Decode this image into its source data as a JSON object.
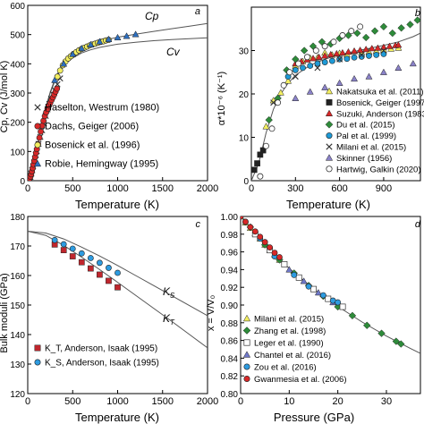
{
  "chart_data": [
    {
      "panel_letter": "a",
      "type": "scatter",
      "xlabel": "Temperature (K)",
      "ylabel": "Cp, Cv (J/mol K)",
      "xlim": [
        0,
        2000
      ],
      "ylim": [
        0,
        600
      ],
      "xticks": [
        0,
        500,
        1000,
        1500,
        2000
      ],
      "yticks": [
        0,
        100,
        200,
        300,
        400,
        500,
        600
      ],
      "curve_labels": [
        "Cp",
        "Cv"
      ],
      "curves": [
        {
          "name": "Cp",
          "x": [
            0,
            25,
            50,
            75,
            100,
            150,
            200,
            250,
            300,
            350,
            400,
            450,
            500,
            600,
            700,
            800,
            900,
            1000,
            1200,
            1400,
            1600,
            1800,
            2000
          ],
          "y": [
            0,
            10,
            36,
            72,
            110,
            184,
            250,
            303,
            345,
            377,
            401,
            420,
            434,
            454,
            467,
            476,
            484,
            491,
            501,
            511,
            520,
            529,
            538
          ]
        },
        {
          "name": "Cv",
          "x": [
            0,
            25,
            50,
            75,
            100,
            150,
            200,
            250,
            300,
            350,
            400,
            450,
            500,
            600,
            700,
            800,
            900,
            1000,
            1200,
            1400,
            1600,
            1800,
            2000
          ],
          "y": [
            0,
            10,
            36,
            72,
            109,
            182,
            247,
            299,
            339,
            370,
            392,
            408,
            420,
            437,
            448,
            456,
            462,
            467,
            474,
            479,
            483,
            486,
            489
          ]
        }
      ],
      "series": [
        {
          "name": "Haselton, Westrum (1980)",
          "marker": "x",
          "color": "#333333",
          "x": [
            10,
            20,
            30,
            40,
            50,
            60,
            70,
            80,
            90,
            100,
            120,
            140,
            160,
            180,
            200,
            220,
            240,
            260,
            280,
            300,
            330,
            360
          ],
          "y": [
            1,
            5,
            13,
            24,
            36,
            49,
            62,
            75,
            88,
            101,
            126,
            150,
            173,
            196,
            222,
            244,
            263,
            280,
            296,
            310,
            330,
            350
          ]
        },
        {
          "name": "Dachs, Geiger (2006)",
          "marker": "circle",
          "color": "#d82828",
          "x": [
            8,
            15,
            22,
            30,
            38,
            46,
            55,
            64,
            73,
            82,
            92,
            102,
            115,
            130,
            145,
            160,
            175,
            190,
            205,
            220,
            235,
            250,
            265,
            280,
            295,
            310,
            325
          ],
          "y": [
            0.5,
            3,
            8,
            14,
            22,
            32,
            43,
            55,
            68,
            81,
            95,
            108,
            125,
            147,
            168,
            188,
            205,
            221,
            234,
            246,
            257,
            266,
            276,
            285,
            295,
            305,
            315
          ]
        },
        {
          "name": "Bosenick et al. (1996)",
          "marker": "circle",
          "color": "#f2ee60",
          "x": [
            330,
            360,
            390,
            420,
            450,
            480,
            510,
            540,
            570,
            600,
            630,
            660,
            690,
            720,
            750,
            780,
            810,
            840,
            870,
            900
          ],
          "y": [
            356,
            377,
            395,
            408,
            418,
            426,
            434,
            440,
            446,
            451,
            455,
            459,
            463,
            466,
            469,
            472,
            475,
            477,
            480,
            482
          ]
        },
        {
          "name": "Robie, Hemingway (1995)",
          "marker": "triangle",
          "color": "#2e6fbe",
          "x": [
            300,
            400,
            500,
            600,
            700,
            800,
            900,
            1000,
            1100,
            1200
          ],
          "y": [
            344,
            400,
            433,
            453,
            466,
            476,
            484,
            490,
            495,
            501
          ]
        }
      ]
    },
    {
      "panel_letter": "b",
      "type": "scatter",
      "xlabel": "Temperature (K)",
      "ylabel": "α*10⁻⁶ (K⁻¹)",
      "xlim": [
        0,
        1150
      ],
      "ylim": [
        0,
        40
      ],
      "xticks": [
        0,
        300,
        600,
        900
      ],
      "yticks": [
        0,
        10,
        20,
        30
      ],
      "curve": {
        "x": [
          0,
          50,
          100,
          150,
          200,
          250,
          300,
          400,
          500,
          600,
          700,
          800,
          900,
          1000,
          1100,
          1150
        ],
        "y": [
          0,
          4,
          11,
          16.5,
          20,
          22.5,
          24.3,
          26.6,
          28,
          29,
          29.8,
          30.5,
          31.2,
          32,
          33.2,
          34
        ]
      },
      "series": [
        {
          "name": "Nakatsuka et al. (2011)",
          "marker": "triangle",
          "color": "#f2ee60",
          "x": [
            100,
            150,
            200,
            250,
            300,
            350,
            400,
            450,
            500,
            550,
            600,
            650,
            700,
            750,
            800,
            850,
            900,
            950,
            1000
          ],
          "y": [
            12.5,
            18.5,
            20.3,
            23,
            26.5,
            27.5,
            28.3,
            28.4,
            29.5,
            29,
            29.4,
            29.1,
            29.8,
            29.6,
            29.7,
            29.9,
            30.2,
            30.4,
            30.6
          ]
        },
        {
          "name": "Bosenick, Geiger (1997)",
          "marker": "square",
          "color": "#222222",
          "x": [
            20,
            40,
            60,
            80
          ],
          "y": [
            2.5,
            4,
            6,
            7
          ]
        },
        {
          "name": "Suzuki, Anderson (1983)",
          "marker": "triangle",
          "color": "#d82828",
          "x": [
            300,
            340,
            380,
            420,
            460,
            500,
            540,
            580,
            620,
            660,
            700,
            740,
            780,
            820,
            860,
            900,
            940,
            980,
            1000
          ],
          "y": [
            27,
            27.5,
            27.9,
            28.2,
            28.5,
            28.8,
            29.1,
            29.3,
            29.5,
            29.7,
            29.9,
            30.1,
            30.3,
            30.5,
            30.6,
            30.8,
            31,
            31.2,
            31.3
          ]
        },
        {
          "name": "Du et al. (2015)",
          "marker": "diamond",
          "color": "#2e8b3a",
          "x": [
            120,
            180,
            240,
            300,
            360,
            420,
            480,
            540,
            600,
            660,
            720,
            780,
            840,
            900,
            960,
            1020,
            1080,
            1130
          ],
          "y": [
            14,
            19,
            25.5,
            28,
            30,
            31,
            32,
            31.5,
            32.8,
            33.5,
            34,
            33,
            34.5,
            35.5,
            34,
            35.2,
            36,
            37
          ]
        },
        {
          "name": "Pal et al. (1999)",
          "marker": "circle",
          "color": "#1e9ad6",
          "x": [
            250,
            300,
            350,
            400,
            450,
            500,
            550,
            600,
            650,
            700,
            750,
            800,
            850,
            900
          ],
          "y": [
            24,
            25.5,
            26,
            26.5,
            27,
            27.3,
            27.6,
            28,
            28.1,
            28.4,
            28.6,
            28.8,
            29,
            29.2
          ]
        },
        {
          "name": "Milani et al. (2015)",
          "marker": "x",
          "color": "#333333",
          "x": [
            150,
            300,
            450,
            600,
            750,
            900
          ],
          "y": [
            18,
            24,
            26,
            28,
            29,
            30
          ]
        },
        {
          "name": "Skinner (1956)",
          "marker": "triangle",
          "color": "#8a82c8",
          "x": [
            300,
            400,
            500,
            600,
            700,
            800,
            900,
            1000,
            1100
          ],
          "y": [
            19,
            20.5,
            21.5,
            22.5,
            23.5,
            24,
            25,
            26,
            27
          ]
        },
        {
          "name": "Hartwig, Galkin (2020)",
          "marker": "open-circle",
          "color": "#444444",
          "x": [
            60,
            100,
            140,
            180,
            220,
            260,
            320,
            380,
            440,
            500,
            560,
            620,
            680,
            740
          ],
          "y": [
            1,
            8,
            12,
            18,
            22,
            25,
            27,
            28.5,
            30,
            31,
            32,
            33.5,
            34.5,
            35.5
          ]
        }
      ]
    },
    {
      "panel_letter": "c",
      "type": "scatter",
      "xlabel": "Temperature (K)",
      "ylabel": "Bulk moduli (GPa)",
      "xlim": [
        0,
        2000
      ],
      "ylim": [
        120,
        180
      ],
      "xticks": [
        0,
        500,
        1000,
        1500,
        2000
      ],
      "yticks": [
        120,
        130,
        140,
        150,
        160,
        170,
        180
      ],
      "curve_labels": [
        "K_S",
        "K_T"
      ],
      "curves": [
        {
          "name": "K_S",
          "x": [
            0,
            200,
            400,
            600,
            800,
            1000,
            1200,
            1400,
            1600,
            1800,
            2000
          ],
          "y": [
            175,
            174.4,
            172.4,
            169.6,
            166.6,
            163.4,
            160,
            156.6,
            153.2,
            149.8,
            146.4
          ]
        },
        {
          "name": "K_T",
          "x": [
            0,
            200,
            400,
            600,
            800,
            1000,
            1200,
            1400,
            1600,
            1800,
            2000
          ],
          "y": [
            175,
            173.6,
            170.2,
            166.2,
            162,
            157.7,
            153.3,
            148.9,
            144.5,
            140,
            135.5
          ]
        }
      ],
      "series": [
        {
          "name": "K_T, Anderson, Isaak (1995)",
          "marker": "square",
          "color": "#c0262d",
          "x": [
            300,
            400,
            500,
            600,
            700,
            800,
            900,
            1000
          ],
          "y": [
            170.5,
            168.6,
            166.5,
            164.5,
            162.4,
            160.3,
            158.2,
            156
          ]
        },
        {
          "name": "K_S, Anderson, Isaak (1995)",
          "marker": "circle",
          "color": "#2d9be0",
          "x": [
            300,
            400,
            500,
            600,
            700,
            800,
            900,
            1000
          ],
          "y": [
            172,
            170.6,
            169.1,
            167.5,
            165.9,
            164.3,
            162.6,
            160.9
          ]
        }
      ]
    },
    {
      "panel_letter": "d",
      "type": "scatter",
      "xlabel": "Pressure (GPa)",
      "ylabel": "x = V/V₀",
      "xlim": [
        0,
        37
      ],
      "ylim": [
        0.8,
        1.0
      ],
      "xticks": [
        0,
        10,
        20,
        30
      ],
      "yticks": [
        0.8,
        0.82,
        0.84,
        0.86,
        0.88,
        0.9,
        0.92,
        0.94,
        0.96,
        0.98,
        1.0
      ],
      "curve": {
        "x": [
          0,
          5,
          10,
          15,
          20,
          25,
          30,
          35,
          37
        ],
        "y": [
          1.0,
          0.9682,
          0.9413,
          0.9184,
          0.8985,
          0.8808,
          0.865,
          0.8508,
          0.8454
        ]
      },
      "series": [
        {
          "name": "Milani et al. (2015)",
          "marker": "triangle",
          "color": "#f2ee60",
          "x": [
            0,
            1,
            2,
            3,
            4,
            5,
            6,
            7,
            8
          ],
          "y": [
            1.0,
            0.993,
            0.987,
            0.981,
            0.975,
            0.968,
            0.962,
            0.957,
            0.951
          ]
        },
        {
          "name": "Zhang et al. (1998)",
          "marker": "diamond",
          "color": "#2e8b3a",
          "x": [
            2,
            5,
            8,
            11,
            14,
            17,
            20,
            23,
            26,
            29,
            32,
            33
          ],
          "y": [
            0.988,
            0.968,
            0.951,
            0.936,
            0.922,
            0.91,
            0.898,
            0.888,
            0.877,
            0.868,
            0.859,
            0.856
          ]
        },
        {
          "name": "Leger et al. (1990)",
          "marker": "open-square",
          "color": "#444444",
          "x": [
            3,
            6,
            9,
            12,
            15,
            18,
            21
          ],
          "y": [
            0.98,
            0.962,
            0.946,
            0.931,
            0.918,
            0.907,
            0.898
          ]
        },
        {
          "name": "Chantel et al. (2016)",
          "marker": "triangle",
          "color": "#6f78c8",
          "x": [
            10,
            13,
            16,
            19
          ],
          "y": [
            0.94,
            0.927,
            0.914,
            0.903
          ]
        },
        {
          "name": "Zou et al. (2016)",
          "marker": "circle",
          "color": "#2d9be0",
          "x": [
            1,
            4,
            7,
            11,
            14,
            17,
            19,
            20
          ],
          "y": [
            0.994,
            0.975,
            0.955,
            0.934,
            0.921,
            0.911,
            0.905,
            0.903
          ]
        },
        {
          "name": "Gwanmesia et al. (2006)",
          "marker": "circle",
          "color": "#d82828",
          "x": [
            0,
            1,
            2,
            3,
            4,
            5,
            6,
            7,
            8
          ],
          "y": [
            1.0,
            0.994,
            0.988,
            0.983,
            0.977,
            0.971,
            0.965,
            0.959,
            0.954
          ]
        }
      ]
    }
  ]
}
